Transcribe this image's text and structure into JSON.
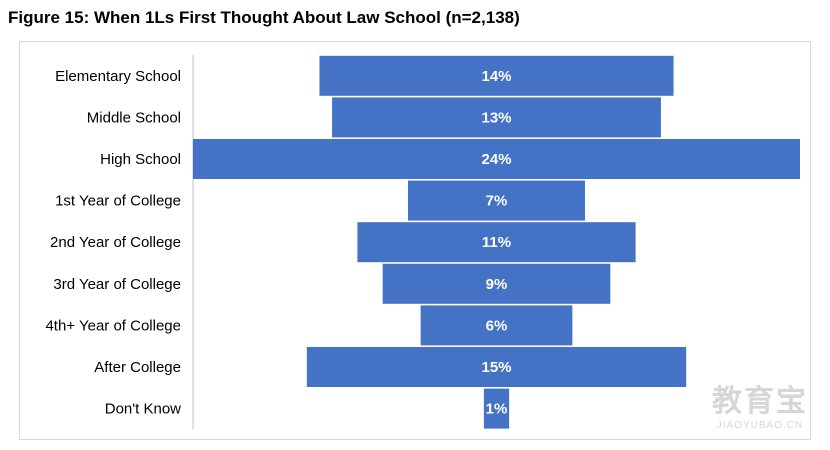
{
  "title": "Figure 15: When 1Ls First Thought About Law School (n=2,138)",
  "colors": {
    "bar": "#4472C4",
    "bar_text": "#ffffff",
    "axis": "#bfbfbf",
    "frame": "#d9d9d9"
  },
  "chart_data": {
    "type": "bar",
    "orientation": "horizontal",
    "style": "funnel-centered",
    "title": "Figure 15: When 1Ls First Thought About Law School (n=2,138)",
    "categories": [
      "Elementary School",
      "Middle School",
      "High School",
      "1st Year of College",
      "2nd Year of College",
      "3rd Year of College",
      "4th+ Year of College",
      "After College",
      "Don't Know"
    ],
    "values": [
      14,
      13,
      24,
      7,
      11,
      9,
      6,
      15,
      1
    ],
    "value_labels": [
      "14%",
      "13%",
      "24%",
      "7%",
      "11%",
      "9%",
      "6%",
      "15%",
      "1%"
    ],
    "unit": "%",
    "xlim": [
      0,
      24
    ],
    "grid": false,
    "legend": "none"
  },
  "watermark": {
    "main": "教育宝",
    "sub": "JIAOYUBAO.CN"
  }
}
